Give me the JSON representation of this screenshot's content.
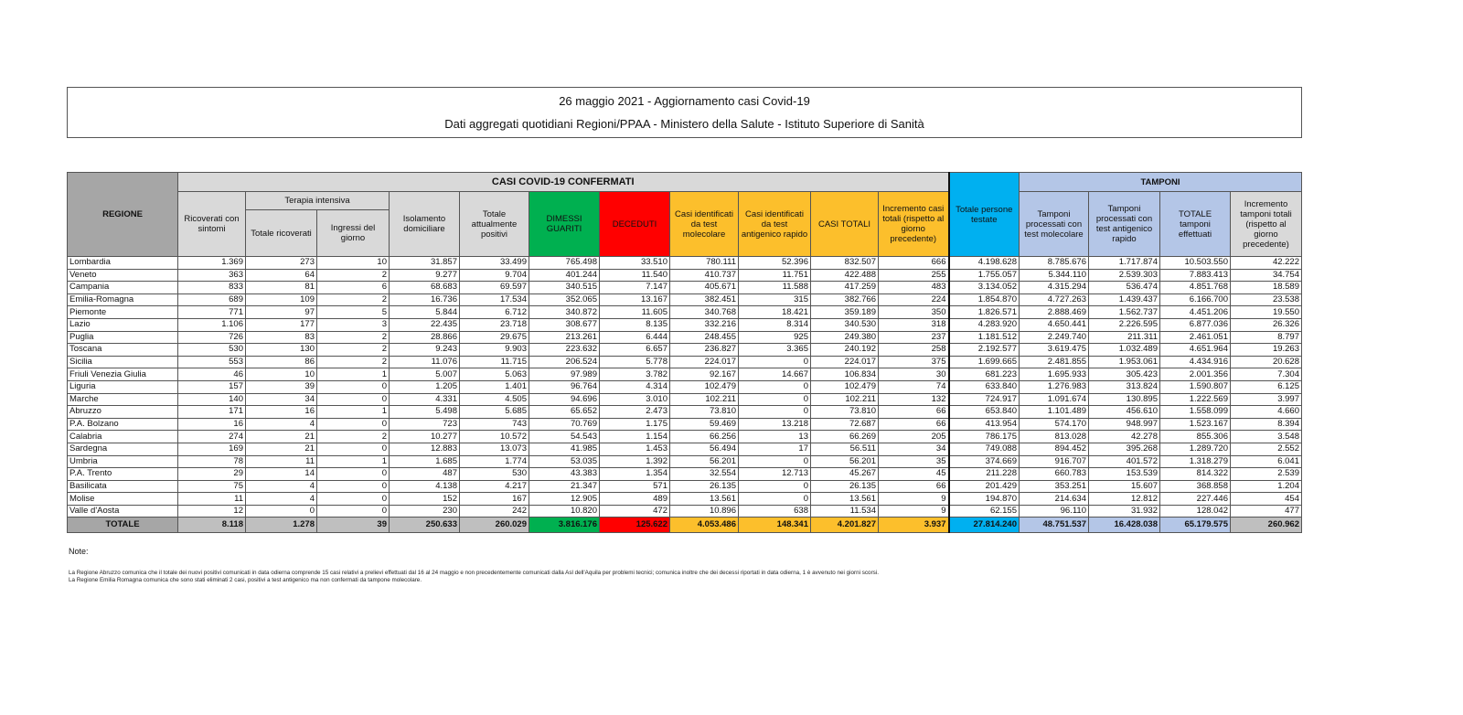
{
  "header": {
    "title": "26 maggio 2021 - Aggiornamento casi Covid-19",
    "subtitle": "Dati aggregati quotidiani Regioni/PPAA - Ministero della Salute - Istituto Superiore di Sanità"
  },
  "table": {
    "group_casi": "CASI COVID-19 CONFERMATI",
    "group_tamponi": "TAMPONI",
    "group_ti": "Terapia intensiva",
    "columns": [
      "REGIONE",
      "Ricoverati con sintomi",
      "Totale ricoverati",
      "Ingressi del giorno",
      "Isolamento domiciliare",
      "Totale attualmente positivi",
      "DIMESSI GUARITI",
      "DECEDUTI",
      "Casi identificati da test molecolare",
      "Casi identificati da test antigenico rapido",
      "CASI TOTALI",
      "Incremento casi totali (rispetto al giorno precedente)",
      "Totale persone testate",
      "Tamponi processati con test molecolare",
      "Tamponi processati con test antigenico rapido",
      "TOTALE tamponi effettuati",
      "Incremento tamponi totali (rispetto al giorno precedente)"
    ],
    "rows": [
      [
        "Lombardia",
        "1.369",
        "273",
        "10",
        "31.857",
        "33.499",
        "765.498",
        "33.510",
        "780.111",
        "52.396",
        "832.507",
        "666",
        "4.198.628",
        "8.785.676",
        "1.717.874",
        "10.503.550",
        "42.222"
      ],
      [
        "Veneto",
        "363",
        "64",
        "2",
        "9.277",
        "9.704",
        "401.244",
        "11.540",
        "410.737",
        "11.751",
        "422.488",
        "255",
        "1.755.057",
        "5.344.110",
        "2.539.303",
        "7.883.413",
        "34.754"
      ],
      [
        "Campania",
        "833",
        "81",
        "6",
        "68.683",
        "69.597",
        "340.515",
        "7.147",
        "405.671",
        "11.588",
        "417.259",
        "483",
        "3.134.052",
        "4.315.294",
        "536.474",
        "4.851.768",
        "18.589"
      ],
      [
        "Emilia-Romagna",
        "689",
        "109",
        "2",
        "16.736",
        "17.534",
        "352.065",
        "13.167",
        "382.451",
        "315",
        "382.766",
        "224",
        "1.854.870",
        "4.727.263",
        "1.439.437",
        "6.166.700",
        "23.538"
      ],
      [
        "Piemonte",
        "771",
        "97",
        "5",
        "5.844",
        "6.712",
        "340.872",
        "11.605",
        "340.768",
        "18.421",
        "359.189",
        "350",
        "1.826.571",
        "2.888.469",
        "1.562.737",
        "4.451.206",
        "19.550"
      ],
      [
        "Lazio",
        "1.106",
        "177",
        "3",
        "22.435",
        "23.718",
        "308.677",
        "8.135",
        "332.216",
        "8.314",
        "340.530",
        "318",
        "4.283.920",
        "4.650.441",
        "2.226.595",
        "6.877.036",
        "26.326"
      ],
      [
        "Puglia",
        "726",
        "83",
        "2",
        "28.866",
        "29.675",
        "213.261",
        "6.444",
        "248.455",
        "925",
        "249.380",
        "237",
        "1.181.512",
        "2.249.740",
        "211.311",
        "2.461.051",
        "8.797"
      ],
      [
        "Toscana",
        "530",
        "130",
        "2",
        "9.243",
        "9.903",
        "223.632",
        "6.657",
        "236.827",
        "3.365",
        "240.192",
        "258",
        "2.192.577",
        "3.619.475",
        "1.032.489",
        "4.651.964",
        "19.263"
      ],
      [
        "Sicilia",
        "553",
        "86",
        "2",
        "11.076",
        "11.715",
        "206.524",
        "5.778",
        "224.017",
        "0",
        "224.017",
        "375",
        "1.699.665",
        "2.481.855",
        "1.953.061",
        "4.434.916",
        "20.628"
      ],
      [
        "Friuli Venezia Giulia",
        "46",
        "10",
        "1",
        "5.007",
        "5.063",
        "97.989",
        "3.782",
        "92.167",
        "14.667",
        "106.834",
        "30",
        "681.223",
        "1.695.933",
        "305.423",
        "2.001.356",
        "7.304"
      ],
      [
        "Liguria",
        "157",
        "39",
        "0",
        "1.205",
        "1.401",
        "96.764",
        "4.314",
        "102.479",
        "0",
        "102.479",
        "74",
        "633.840",
        "1.276.983",
        "313.824",
        "1.590.807",
        "6.125"
      ],
      [
        "Marche",
        "140",
        "34",
        "0",
        "4.331",
        "4.505",
        "94.696",
        "3.010",
        "102.211",
        "0",
        "102.211",
        "132",
        "724.917",
        "1.091.674",
        "130.895",
        "1.222.569",
        "3.997"
      ],
      [
        "Abruzzo",
        "171",
        "16",
        "1",
        "5.498",
        "5.685",
        "65.652",
        "2.473",
        "73.810",
        "0",
        "73.810",
        "66",
        "653.840",
        "1.101.489",
        "456.610",
        "1.558.099",
        "4.660"
      ],
      [
        "P.A. Bolzano",
        "16",
        "4",
        "0",
        "723",
        "743",
        "70.769",
        "1.175",
        "59.469",
        "13.218",
        "72.687",
        "66",
        "413.954",
        "574.170",
        "948.997",
        "1.523.167",
        "8.394"
      ],
      [
        "Calabria",
        "274",
        "21",
        "2",
        "10.277",
        "10.572",
        "54.543",
        "1.154",
        "66.256",
        "13",
        "66.269",
        "205",
        "786.175",
        "813.028",
        "42.278",
        "855.306",
        "3.548"
      ],
      [
        "Sardegna",
        "169",
        "21",
        "0",
        "12.883",
        "13.073",
        "41.985",
        "1.453",
        "56.494",
        "17",
        "56.511",
        "34",
        "749.088",
        "894.452",
        "395.268",
        "1.289.720",
        "2.552"
      ],
      [
        "Umbria",
        "78",
        "11",
        "1",
        "1.685",
        "1.774",
        "53.035",
        "1.392",
        "56.201",
        "0",
        "56.201",
        "35",
        "374.669",
        "916.707",
        "401.572",
        "1.318.279",
        "6.041"
      ],
      [
        "P.A. Trento",
        "29",
        "14",
        "0",
        "487",
        "530",
        "43.383",
        "1.354",
        "32.554",
        "12.713",
        "45.267",
        "45",
        "211.228",
        "660.783",
        "153.539",
        "814.322",
        "2.539"
      ],
      [
        "Basilicata",
        "75",
        "4",
        "0",
        "4.138",
        "4.217",
        "21.347",
        "571",
        "26.135",
        "0",
        "26.135",
        "66",
        "201.429",
        "353.251",
        "15.607",
        "368.858",
        "1.204"
      ],
      [
        "Molise",
        "11",
        "4",
        "0",
        "152",
        "167",
        "12.905",
        "489",
        "13.561",
        "0",
        "13.561",
        "9",
        "194.870",
        "214.634",
        "12.812",
        "227.446",
        "454"
      ],
      [
        "Valle d'Aosta",
        "12",
        "0",
        "0",
        "230",
        "242",
        "10.820",
        "472",
        "10.896",
        "638",
        "11.534",
        "9",
        "62.155",
        "96.110",
        "31.932",
        "128.042",
        "477"
      ]
    ],
    "total": [
      "TOTALE",
      "8.118",
      "1.278",
      "39",
      "250.633",
      "260.029",
      "3.816.176",
      "125.622",
      "4.053.486",
      "148.341",
      "4.201.827",
      "3.937",
      "27.814.240",
      "48.751.537",
      "16.428.038",
      "65.179.575",
      "260.962"
    ]
  },
  "notes": {
    "label": "Note:",
    "lines": [
      "La Regione Abruzzo comunica che il totale dei nuovi positivi comunicati in data odierna comprende 15 casi relativi a prelievi effettuati dal 16 al 24 maggio e non precedentemente comunicati dalla Asl dell'Aquila per problemi tecnici; comunica inoltre che dei decessi riportati in data odierna, 1 è avvenuto nei giorni scorsi.",
      "La Regione Emilia Romagna comunica che sono stati eliminati 2 casi, positivi a test antigenico ma non confermati da tampone molecolare."
    ]
  },
  "colors": {
    "green": "#00b050",
    "red": "#ff0000",
    "orange": "#fcbf2c",
    "blue": "#00b0f0",
    "lightblue": "#b4c6e7",
    "grey": "#d9d9d9"
  }
}
